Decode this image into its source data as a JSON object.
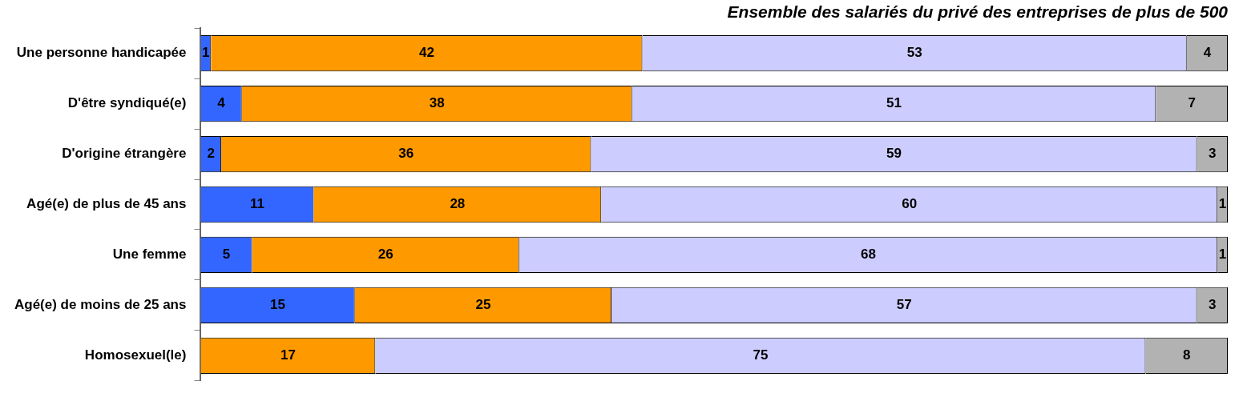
{
  "chart_data": {
    "type": "bar",
    "orientation": "horizontal",
    "stacked": true,
    "title": "Ensemble des salariés du privé des entreprises de plus de 500",
    "categories": [
      "Une personne handicapée",
      "D'être syndiqué(e)",
      "D'origine étrangère",
      "Agé(e) de plus de 45 ans",
      "Une femme",
      "Agé(e) de moins de 25 ans",
      "Homosexuel(le)"
    ],
    "series": [
      {
        "color": "#3366ff",
        "values": [
          1,
          4,
          2,
          11,
          5,
          15,
          null
        ]
      },
      {
        "color": "#ff9900",
        "values": [
          42,
          38,
          36,
          28,
          26,
          25,
          17
        ]
      },
      {
        "color": "#ccccff",
        "values": [
          53,
          51,
          59,
          60,
          68,
          57,
          75
        ]
      },
      {
        "color": "#b2b2b2",
        "values": [
          4,
          7,
          3,
          1,
          1,
          3,
          8
        ]
      }
    ],
    "xlim": [
      0,
      100
    ],
    "data_labels": true,
    "grid": false,
    "legend": false,
    "tick_labels": "y"
  }
}
